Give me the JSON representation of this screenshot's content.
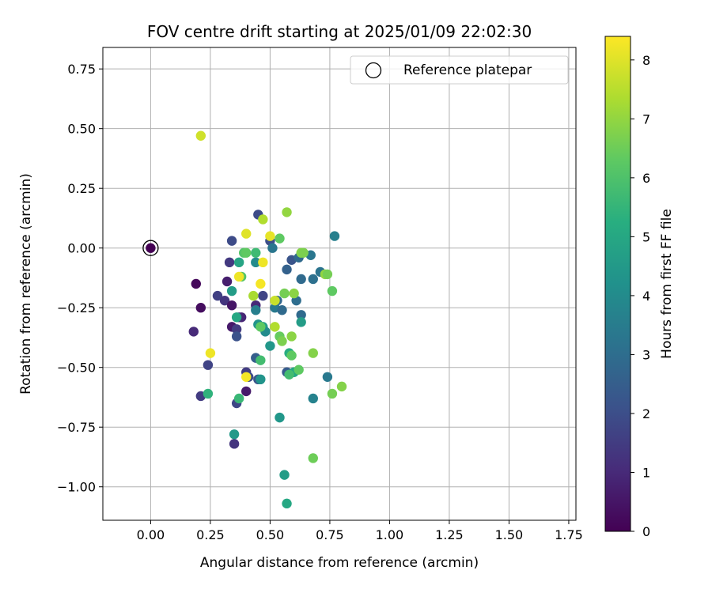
{
  "chart_data": {
    "type": "scatter",
    "title": "FOV centre drift starting at 2025/01/09 22:02:30",
    "xlabel": "Angular distance from reference (arcmin)",
    "ylabel": "Rotation from reference (arcmin)",
    "xlim": [
      -0.2,
      1.78
    ],
    "ylim": [
      -1.14,
      0.84
    ],
    "xticks": [
      "0.00",
      "0.25",
      "0.50",
      "0.75",
      "1.00",
      "1.25",
      "1.50",
      "1.75"
    ],
    "xtick_values": [
      0,
      0.25,
      0.5,
      0.75,
      1.0,
      1.25,
      1.5,
      1.75
    ],
    "yticks": [
      "0.75",
      "0.50",
      "0.25",
      "0.00",
      "−0.25",
      "−0.50",
      "−0.75",
      "−1.00"
    ],
    "ytick_values": [
      0.75,
      0.5,
      0.25,
      0,
      -0.25,
      -0.5,
      -0.75,
      -1.0
    ],
    "grid": true,
    "legend": {
      "position": "top-right",
      "entries": [
        "Reference platepar"
      ]
    },
    "colorbar": {
      "label": "Hours from first FF file",
      "colormap": "viridis",
      "range": [
        0,
        8.4
      ],
      "ticks": [
        "0",
        "1",
        "2",
        "3",
        "4",
        "5",
        "6",
        "7",
        "8"
      ],
      "tick_values": [
        0,
        1,
        2,
        3,
        4,
        5,
        6,
        7,
        8
      ]
    },
    "reference_point": {
      "x": 0.0,
      "y": 0.0
    },
    "points": [
      {
        "x": 0.0,
        "y": 0.0,
        "c": 0.0
      },
      {
        "x": 0.19,
        "y": -0.15,
        "c": 0.2
      },
      {
        "x": 0.21,
        "y": -0.25,
        "c": 0.3
      },
      {
        "x": 0.18,
        "y": -0.35,
        "c": 1.0
      },
      {
        "x": 0.21,
        "y": -0.62,
        "c": 1.5
      },
      {
        "x": 0.24,
        "y": -0.49,
        "c": 1.7
      },
      {
        "x": 0.28,
        "y": -0.2,
        "c": 1.6
      },
      {
        "x": 0.31,
        "y": -0.22,
        "c": 1.3
      },
      {
        "x": 0.32,
        "y": -0.14,
        "c": 0.7
      },
      {
        "x": 0.33,
        "y": -0.06,
        "c": 1.4
      },
      {
        "x": 0.34,
        "y": 0.03,
        "c": 1.9
      },
      {
        "x": 0.34,
        "y": -0.24,
        "c": 0.5
      },
      {
        "x": 0.34,
        "y": -0.33,
        "c": 0.6
      },
      {
        "x": 0.36,
        "y": -0.34,
        "c": 1.5
      },
      {
        "x": 0.36,
        "y": -0.37,
        "c": 2.1
      },
      {
        "x": 0.35,
        "y": -0.82,
        "c": 1.3
      },
      {
        "x": 0.36,
        "y": -0.65,
        "c": 1.8
      },
      {
        "x": 0.37,
        "y": -0.29,
        "c": 1.4
      },
      {
        "x": 0.38,
        "y": -0.29,
        "c": 0.9
      },
      {
        "x": 0.4,
        "y": -0.52,
        "c": 1.5
      },
      {
        "x": 0.4,
        "y": -0.6,
        "c": 0.6
      },
      {
        "x": 0.41,
        "y": -0.54,
        "c": 1.9
      },
      {
        "x": 0.44,
        "y": -0.24,
        "c": 1.0
      },
      {
        "x": 0.44,
        "y": -0.46,
        "c": 2.5
      },
      {
        "x": 0.45,
        "y": 0.14,
        "c": 1.9
      },
      {
        "x": 0.45,
        "y": -0.55,
        "c": 2.2
      },
      {
        "x": 0.47,
        "y": -0.2,
        "c": 1.7
      },
      {
        "x": 0.5,
        "y": 0.03,
        "c": 2.0
      },
      {
        "x": 0.51,
        "y": 0.0,
        "c": 3.3
      },
      {
        "x": 0.52,
        "y": -0.25,
        "c": 3.4
      },
      {
        "x": 0.53,
        "y": -0.22,
        "c": 2.8
      },
      {
        "x": 0.55,
        "y": -0.26,
        "c": 2.9
      },
      {
        "x": 0.57,
        "y": -0.09,
        "c": 2.6
      },
      {
        "x": 0.57,
        "y": -0.52,
        "c": 2.4
      },
      {
        "x": 0.59,
        "y": -0.05,
        "c": 2.2
      },
      {
        "x": 0.61,
        "y": -0.22,
        "c": 3.0
      },
      {
        "x": 0.62,
        "y": -0.04,
        "c": 2.9
      },
      {
        "x": 0.63,
        "y": -0.28,
        "c": 2.9
      },
      {
        "x": 0.63,
        "y": -0.13,
        "c": 2.9
      },
      {
        "x": 0.67,
        "y": -0.03,
        "c": 3.3
      },
      {
        "x": 0.68,
        "y": -0.13,
        "c": 3.1
      },
      {
        "x": 0.71,
        "y": -0.1,
        "c": 3.2
      },
      {
        "x": 0.77,
        "y": 0.05,
        "c": 3.6
      },
      {
        "x": 0.74,
        "y": -0.54,
        "c": 3.4
      },
      {
        "x": 0.68,
        "y": -0.63,
        "c": 3.7
      },
      {
        "x": 0.35,
        "y": -0.78,
        "c": 4.5
      },
      {
        "x": 0.34,
        "y": -0.18,
        "c": 4.6
      },
      {
        "x": 0.36,
        "y": -0.29,
        "c": 5.0
      },
      {
        "x": 0.37,
        "y": -0.06,
        "c": 4.9
      },
      {
        "x": 0.44,
        "y": -0.06,
        "c": 4.0
      },
      {
        "x": 0.44,
        "y": -0.26,
        "c": 3.6
      },
      {
        "x": 0.45,
        "y": -0.32,
        "c": 4.3
      },
      {
        "x": 0.47,
        "y": -0.33,
        "c": 4.7
      },
      {
        "x": 0.48,
        "y": -0.35,
        "c": 4.0
      },
      {
        "x": 0.5,
        "y": -0.41,
        "c": 4.4
      },
      {
        "x": 0.46,
        "y": -0.55,
        "c": 4.3
      },
      {
        "x": 0.54,
        "y": -0.71,
        "c": 4.4
      },
      {
        "x": 0.56,
        "y": -0.95,
        "c": 4.6
      },
      {
        "x": 0.57,
        "y": -1.07,
        "c": 5.0
      },
      {
        "x": 0.58,
        "y": -0.44,
        "c": 5.2
      },
      {
        "x": 0.6,
        "y": -0.52,
        "c": 5.0
      },
      {
        "x": 0.63,
        "y": -0.31,
        "c": 4.6
      },
      {
        "x": 0.24,
        "y": -0.61,
        "c": 5.4
      },
      {
        "x": 0.37,
        "y": -0.63,
        "c": 5.6
      },
      {
        "x": 0.38,
        "y": -0.12,
        "c": 6.1
      },
      {
        "x": 0.39,
        "y": -0.02,
        "c": 6.1
      },
      {
        "x": 0.4,
        "y": -0.02,
        "c": 6.3
      },
      {
        "x": 0.44,
        "y": -0.02,
        "c": 5.7
      },
      {
        "x": 0.46,
        "y": -0.47,
        "c": 5.8
      },
      {
        "x": 0.46,
        "y": -0.33,
        "c": 6.3
      },
      {
        "x": 0.54,
        "y": 0.04,
        "c": 6.3
      },
      {
        "x": 0.54,
        "y": -0.37,
        "c": 6.4
      },
      {
        "x": 0.55,
        "y": -0.39,
        "c": 6.7
      },
      {
        "x": 0.56,
        "y": -0.19,
        "c": 6.6
      },
      {
        "x": 0.58,
        "y": -0.53,
        "c": 5.8
      },
      {
        "x": 0.59,
        "y": -0.45,
        "c": 6.3
      },
      {
        "x": 0.59,
        "y": -0.37,
        "c": 6.9
      },
      {
        "x": 0.6,
        "y": -0.19,
        "c": 6.9
      },
      {
        "x": 0.62,
        "y": -0.51,
        "c": 6.3
      },
      {
        "x": 0.63,
        "y": -0.02,
        "c": 6.8
      },
      {
        "x": 0.64,
        "y": -0.02,
        "c": 6.7
      },
      {
        "x": 0.68,
        "y": -0.44,
        "c": 6.8
      },
      {
        "x": 0.68,
        "y": -0.88,
        "c": 6.5
      },
      {
        "x": 0.73,
        "y": -0.11,
        "c": 7.0
      },
      {
        "x": 0.74,
        "y": -0.11,
        "c": 6.6
      },
      {
        "x": 0.76,
        "y": -0.18,
        "c": 6.3
      },
      {
        "x": 0.76,
        "y": -0.61,
        "c": 6.6
      },
      {
        "x": 0.8,
        "y": -0.58,
        "c": 6.8
      },
      {
        "x": 0.57,
        "y": 0.15,
        "c": 7.0
      },
      {
        "x": 0.47,
        "y": 0.12,
        "c": 7.4
      },
      {
        "x": 0.43,
        "y": -0.2,
        "c": 7.3
      },
      {
        "x": 0.52,
        "y": -0.33,
        "c": 7.4
      },
      {
        "x": 0.52,
        "y": -0.22,
        "c": 7.7
      },
      {
        "x": 0.21,
        "y": 0.47,
        "c": 7.8
      },
      {
        "x": 0.4,
        "y": 0.06,
        "c": 8.0
      },
      {
        "x": 0.5,
        "y": 0.05,
        "c": 8.1
      },
      {
        "x": 0.47,
        "y": -0.06,
        "c": 8.2
      },
      {
        "x": 0.46,
        "y": -0.15,
        "c": 8.3
      },
      {
        "x": 0.37,
        "y": -0.12,
        "c": 8.2
      },
      {
        "x": 0.25,
        "y": -0.44,
        "c": 8.2
      },
      {
        "x": 0.4,
        "y": -0.54,
        "c": 8.3
      }
    ]
  }
}
